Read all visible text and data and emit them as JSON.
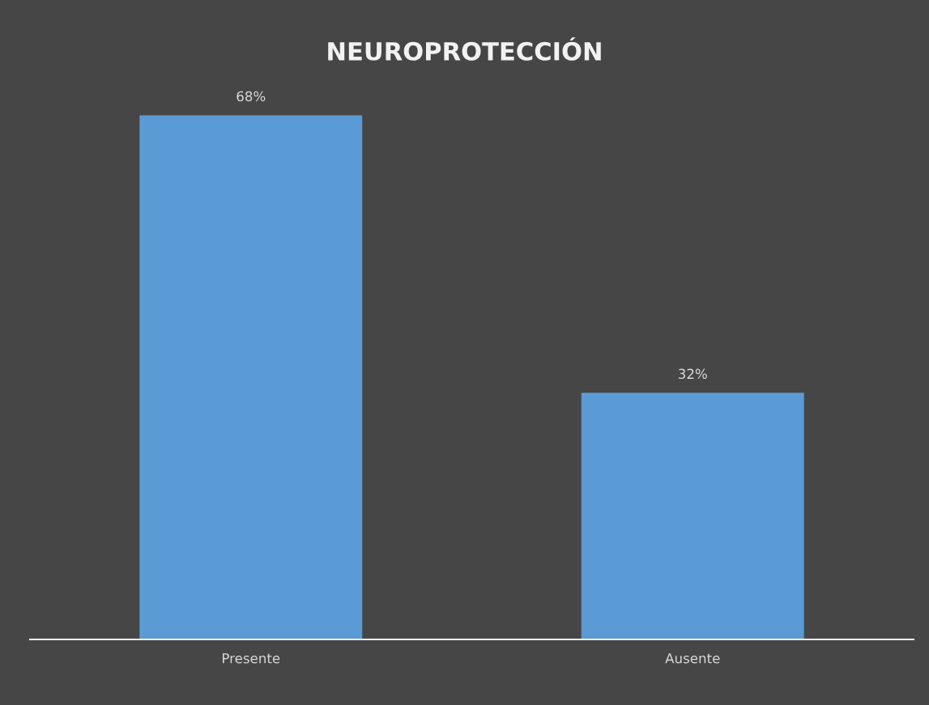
{
  "chart_data": {
    "type": "bar",
    "title": "NEUROPROTECCIÓN",
    "categories": [
      "Presente",
      "Ausente"
    ],
    "values": [
      68,
      32
    ],
    "value_labels": [
      "68%",
      "32%"
    ],
    "color": "#5b9bd5",
    "grid": false,
    "legend": false
  }
}
